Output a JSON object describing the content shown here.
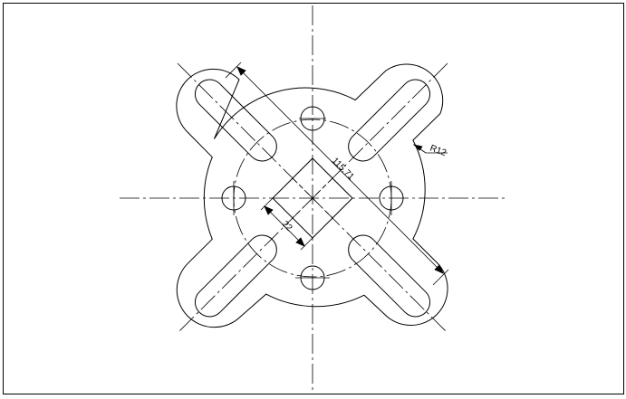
{
  "drawing": {
    "dimensions": {
      "diagonal_length": "115.71",
      "square_side": "22",
      "corner_radius": "R12"
    },
    "colors": {
      "line": "#000000",
      "background": "#ffffff"
    }
  }
}
